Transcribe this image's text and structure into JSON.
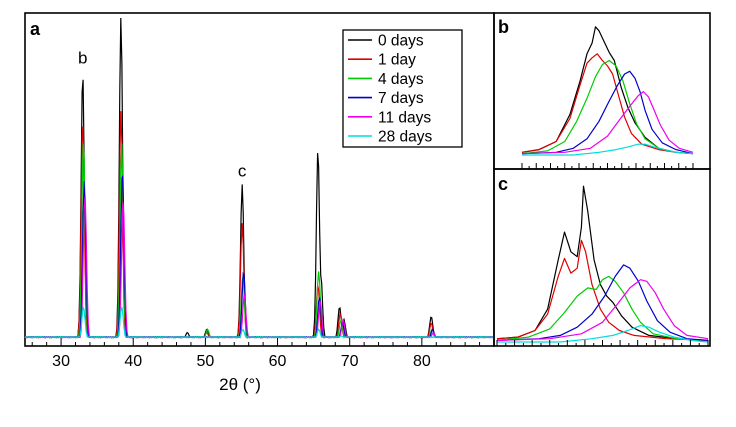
{
  "chart_data": [
    {
      "panel": "a",
      "type": "line",
      "xlabel": "2θ (°)",
      "ylabel": "",
      "xlim": [
        25,
        90
      ],
      "ylim": [
        0,
        1
      ],
      "xticks": [
        30,
        40,
        50,
        60,
        70,
        80
      ],
      "legend_position": "top-right",
      "peak_labels": [
        {
          "text": "b",
          "x": 33.0
        },
        {
          "text": "c",
          "x": 55.1
        }
      ],
      "series": [
        {
          "name": "0 days",
          "color": "#000000",
          "peaks": [
            {
              "x": 33.0,
              "y": 0.83
            },
            {
              "x": 38.3,
              "y": 1.0
            },
            {
              "x": 47.5,
              "y": 0.02
            },
            {
              "x": 50.2,
              "y": 0.03
            },
            {
              "x": 55.1,
              "y": 0.48
            },
            {
              "x": 65.6,
              "y": 0.59
            },
            {
              "x": 66.0,
              "y": 0.2
            },
            {
              "x": 68.6,
              "y": 0.1
            },
            {
              "x": 69.2,
              "y": 0.06
            },
            {
              "x": 81.3,
              "y": 0.07
            }
          ]
        },
        {
          "name": "1 day",
          "color": "#dd0000",
          "peaks": [
            {
              "x": 33.0,
              "y": 0.68
            },
            {
              "x": 38.3,
              "y": 0.71
            },
            {
              "x": 50.2,
              "y": 0.02
            },
            {
              "x": 55.1,
              "y": 0.36
            },
            {
              "x": 65.6,
              "y": 0.17
            },
            {
              "x": 68.7,
              "y": 0.08
            },
            {
              "x": 81.3,
              "y": 0.05
            }
          ]
        },
        {
          "name": "4 days",
          "color": "#00cc00",
          "peaks": [
            {
              "x": 33.1,
              "y": 0.62
            },
            {
              "x": 38.4,
              "y": 0.61
            },
            {
              "x": 50.3,
              "y": 0.03
            },
            {
              "x": 55.2,
              "y": 0.2
            },
            {
              "x": 65.7,
              "y": 0.21
            },
            {
              "x": 68.8,
              "y": 0.06
            },
            {
              "x": 81.4,
              "y": 0.03
            }
          ]
        },
        {
          "name": "7 days",
          "color": "#0000cc",
          "peaks": [
            {
              "x": 33.2,
              "y": 0.49
            },
            {
              "x": 38.5,
              "y": 0.53
            },
            {
              "x": 55.3,
              "y": 0.21
            },
            {
              "x": 65.8,
              "y": 0.13
            },
            {
              "x": 69.0,
              "y": 0.05
            },
            {
              "x": 81.5,
              "y": 0.03
            }
          ]
        },
        {
          "name": "11 days",
          "color": "#ee00ee",
          "peaks": [
            {
              "x": 33.3,
              "y": 0.45
            },
            {
              "x": 38.6,
              "y": 0.43
            },
            {
              "x": 55.4,
              "y": 0.14
            },
            {
              "x": 65.9,
              "y": 0.12
            },
            {
              "x": 69.1,
              "y": 0.06
            },
            {
              "x": 81.6,
              "y": 0.02
            }
          ]
        },
        {
          "name": "28 days",
          "color": "#00dddd",
          "peaks": [
            {
              "x": 33.1,
              "y": 0.1
            },
            {
              "x": 38.4,
              "y": 0.1
            },
            {
              "x": 55.2,
              "y": 0.03
            },
            {
              "x": 65.7,
              "y": 0.03
            },
            {
              "x": 68.8,
              "y": 0.01
            }
          ]
        }
      ]
    },
    {
      "panel": "b",
      "type": "line",
      "xlabel": "",
      "ylabel": "",
      "xlim": [
        0,
        100
      ],
      "ylim": [
        0,
        1
      ],
      "series": [
        {
          "name": "0 days",
          "color": "#000000",
          "points": [
            [
              0,
              0.02
            ],
            [
              10,
              0.04
            ],
            [
              20,
              0.1
            ],
            [
              28,
              0.3
            ],
            [
              34,
              0.55
            ],
            [
              38,
              0.75
            ],
            [
              41,
              0.83
            ],
            [
              43,
              0.95
            ],
            [
              45,
              0.92
            ],
            [
              48,
              0.84
            ],
            [
              51,
              0.76
            ],
            [
              54,
              0.7
            ],
            [
              58,
              0.5
            ],
            [
              62,
              0.35
            ],
            [
              66,
              0.24
            ],
            [
              72,
              0.13
            ],
            [
              80,
              0.05
            ],
            [
              90,
              0.02
            ],
            [
              100,
              0.01
            ]
          ]
        },
        {
          "name": "1 day",
          "color": "#dd0000",
          "points": [
            [
              0,
              0.02
            ],
            [
              10,
              0.04
            ],
            [
              20,
              0.1
            ],
            [
              28,
              0.27
            ],
            [
              34,
              0.52
            ],
            [
              38,
              0.68
            ],
            [
              41,
              0.72
            ],
            [
              44,
              0.75
            ],
            [
              47,
              0.7
            ],
            [
              50,
              0.66
            ],
            [
              53,
              0.6
            ],
            [
              56,
              0.46
            ],
            [
              60,
              0.28
            ],
            [
              64,
              0.16
            ],
            [
              70,
              0.08
            ],
            [
              80,
              0.04
            ],
            [
              90,
              0.02
            ],
            [
              100,
              0.01
            ]
          ]
        },
        {
          "name": "4 days",
          "color": "#00cc00",
          "points": [
            [
              0,
              0.01
            ],
            [
              15,
              0.03
            ],
            [
              25,
              0.1
            ],
            [
              32,
              0.25
            ],
            [
              38,
              0.42
            ],
            [
              43,
              0.58
            ],
            [
              47,
              0.67
            ],
            [
              51,
              0.7
            ],
            [
              55,
              0.66
            ],
            [
              59,
              0.55
            ],
            [
              63,
              0.38
            ],
            [
              67,
              0.23
            ],
            [
              72,
              0.12
            ],
            [
              80,
              0.05
            ],
            [
              90,
              0.02
            ],
            [
              100,
              0.01
            ]
          ]
        },
        {
          "name": "7 days",
          "color": "#0000cc",
          "points": [
            [
              0,
              0.01
            ],
            [
              20,
              0.02
            ],
            [
              30,
              0.05
            ],
            [
              38,
              0.12
            ],
            [
              45,
              0.25
            ],
            [
              51,
              0.4
            ],
            [
              56,
              0.52
            ],
            [
              60,
              0.6
            ],
            [
              63,
              0.62
            ],
            [
              66,
              0.57
            ],
            [
              69,
              0.47
            ],
            [
              72,
              0.33
            ],
            [
              76,
              0.19
            ],
            [
              82,
              0.09
            ],
            [
              90,
              0.04
            ],
            [
              100,
              0.01
            ]
          ]
        },
        {
          "name": "11 days",
          "color": "#ee00ee",
          "points": [
            [
              0,
              0.01
            ],
            [
              25,
              0.02
            ],
            [
              40,
              0.05
            ],
            [
              50,
              0.14
            ],
            [
              57,
              0.26
            ],
            [
              63,
              0.36
            ],
            [
              68,
              0.44
            ],
            [
              71,
              0.47
            ],
            [
              74,
              0.43
            ],
            [
              77,
              0.34
            ],
            [
              81,
              0.22
            ],
            [
              86,
              0.11
            ],
            [
              92,
              0.05
            ],
            [
              100,
              0.02
            ]
          ]
        },
        {
          "name": "28 days",
          "color": "#00dddd",
          "points": [
            [
              0,
              0.0
            ],
            [
              30,
              0.0
            ],
            [
              45,
              0.02
            ],
            [
              55,
              0.04
            ],
            [
              62,
              0.06
            ],
            [
              68,
              0.08
            ],
            [
              72,
              0.08
            ],
            [
              77,
              0.06
            ],
            [
              83,
              0.04
            ],
            [
              90,
              0.02
            ],
            [
              100,
              0.01
            ]
          ]
        }
      ]
    },
    {
      "panel": "c",
      "type": "line",
      "xlabel": "",
      "ylabel": "",
      "xlim": [
        0,
        100
      ],
      "ylim": [
        0,
        1
      ],
      "series": [
        {
          "name": "0 days",
          "color": "#000000",
          "points": [
            [
              0,
              0.02
            ],
            [
              10,
              0.03
            ],
            [
              18,
              0.07
            ],
            [
              24,
              0.2
            ],
            [
              29,
              0.5
            ],
            [
              32,
              0.67
            ],
            [
              35,
              0.55
            ],
            [
              38,
              0.52
            ],
            [
              40,
              0.7
            ],
            [
              41,
              0.95
            ],
            [
              43,
              0.8
            ],
            [
              46,
              0.5
            ],
            [
              49,
              0.35
            ],
            [
              52,
              0.28
            ],
            [
              55,
              0.24
            ],
            [
              59,
              0.16
            ],
            [
              64,
              0.09
            ],
            [
              72,
              0.04
            ],
            [
              85,
              0.02
            ],
            [
              100,
              0.01
            ]
          ]
        },
        {
          "name": "1 day",
          "color": "#dd0000",
          "points": [
            [
              0,
              0.02
            ],
            [
              10,
              0.03
            ],
            [
              18,
              0.07
            ],
            [
              24,
              0.17
            ],
            [
              29,
              0.4
            ],
            [
              32,
              0.51
            ],
            [
              35,
              0.42
            ],
            [
              38,
              0.45
            ],
            [
              40,
              0.62
            ],
            [
              42,
              0.55
            ],
            [
              45,
              0.35
            ],
            [
              49,
              0.2
            ],
            [
              53,
              0.12
            ],
            [
              58,
              0.07
            ],
            [
              65,
              0.04
            ],
            [
              80,
              0.02
            ],
            [
              100,
              0.01
            ]
          ]
        },
        {
          "name": "4 days",
          "color": "#00cc00",
          "points": [
            [
              0,
              0.01
            ],
            [
              15,
              0.03
            ],
            [
              25,
              0.08
            ],
            [
              32,
              0.18
            ],
            [
              38,
              0.28
            ],
            [
              43,
              0.33
            ],
            [
              47,
              0.32
            ],
            [
              50,
              0.38
            ],
            [
              53,
              0.4
            ],
            [
              56,
              0.37
            ],
            [
              60,
              0.3
            ],
            [
              64,
              0.2
            ],
            [
              68,
              0.12
            ],
            [
              74,
              0.05
            ],
            [
              85,
              0.02
            ],
            [
              100,
              0.01
            ]
          ]
        },
        {
          "name": "7 days",
          "color": "#0000cc",
          "points": [
            [
              0,
              0.01
            ],
            [
              20,
              0.02
            ],
            [
              30,
              0.04
            ],
            [
              38,
              0.09
            ],
            [
              45,
              0.17
            ],
            [
              51,
              0.28
            ],
            [
              56,
              0.4
            ],
            [
              60,
              0.47
            ],
            [
              63,
              0.45
            ],
            [
              67,
              0.37
            ],
            [
              71,
              0.25
            ],
            [
              76,
              0.13
            ],
            [
              82,
              0.06
            ],
            [
              90,
              0.02
            ],
            [
              100,
              0.01
            ]
          ]
        },
        {
          "name": "11 days",
          "color": "#ee00ee",
          "points": [
            [
              0,
              0.01
            ],
            [
              25,
              0.02
            ],
            [
              40,
              0.05
            ],
            [
              50,
              0.12
            ],
            [
              57,
              0.23
            ],
            [
              63,
              0.33
            ],
            [
              68,
              0.38
            ],
            [
              71,
              0.37
            ],
            [
              75,
              0.3
            ],
            [
              79,
              0.2
            ],
            [
              84,
              0.1
            ],
            [
              90,
              0.04
            ],
            [
              100,
              0.02
            ]
          ]
        },
        {
          "name": "28 days",
          "color": "#00dddd",
          "points": [
            [
              0,
              0.0
            ],
            [
              30,
              0.0
            ],
            [
              45,
              0.02
            ],
            [
              55,
              0.04
            ],
            [
              62,
              0.07
            ],
            [
              68,
              0.1
            ],
            [
              72,
              0.09
            ],
            [
              77,
              0.06
            ],
            [
              84,
              0.03
            ],
            [
              92,
              0.01
            ],
            [
              100,
              0.0
            ]
          ]
        }
      ]
    }
  ]
}
